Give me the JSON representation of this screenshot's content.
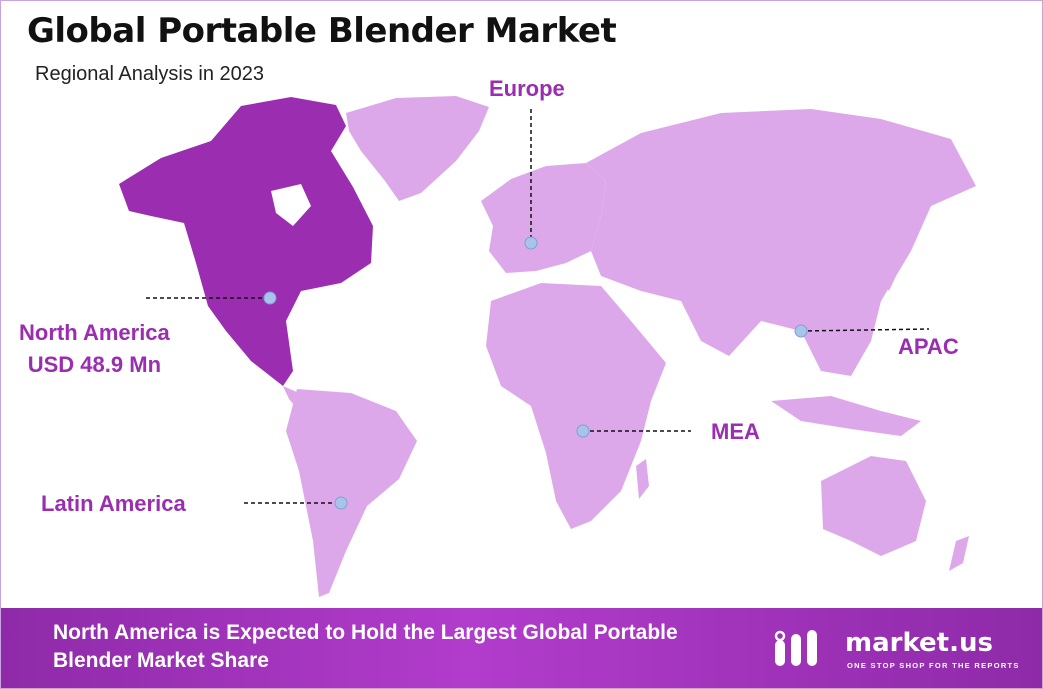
{
  "title": "Global Portable Blender Market",
  "subtitle": "Regional Analysis in 2023",
  "regions": {
    "north_america": {
      "name": "North America",
      "value": "USD 48.9 Mn",
      "highlighted": true
    },
    "europe": {
      "name": "Europe"
    },
    "apac": {
      "name": "APAC"
    },
    "mea": {
      "name": "MEA"
    },
    "latin_america": {
      "name": "Latin America"
    }
  },
  "footer": {
    "headline": "North America is Expected to Hold the Largest Global Portable Blender Market Share",
    "brand": "market.us",
    "tagline": "ONE STOP SHOP FOR THE REPORTS"
  },
  "colors": {
    "highlight": "#9a2db0",
    "land": "#dda8ea",
    "marker": "#a9c3ea",
    "label": "#9a2db0"
  }
}
